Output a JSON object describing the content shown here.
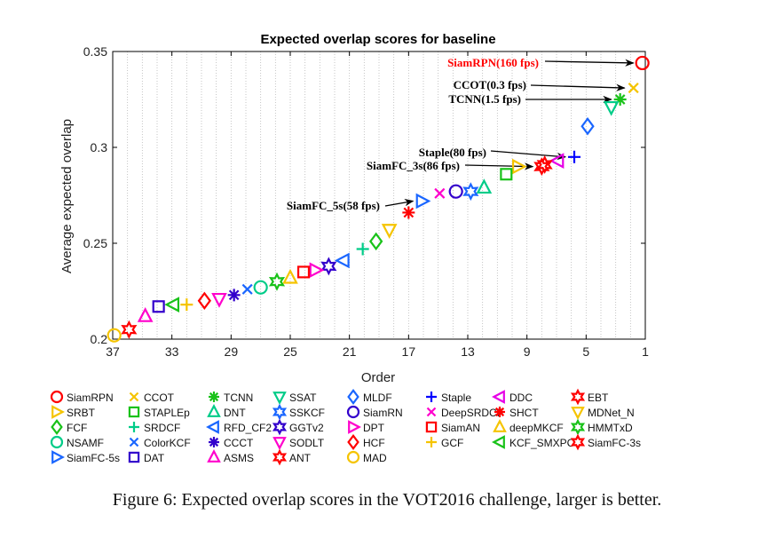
{
  "caption": "Figure 6: Expected overlap scores in the VOT2016 challenge, larger is better.",
  "chart_data": {
    "type": "scatter",
    "title": "Expected overlap scores for baseline",
    "xlabel": "Order",
    "ylabel": "Average expected overlap",
    "xlim": [
      37,
      1
    ],
    "ylim": [
      0.2,
      0.35
    ],
    "xticks": [
      37,
      33,
      29,
      25,
      21,
      17,
      13,
      9,
      5,
      1
    ],
    "xtick_labels": [
      "37",
      "33",
      "29",
      "25",
      "21",
      "17",
      "13",
      "9",
      "5",
      "1"
    ],
    "yticks": [
      0.2,
      0.25,
      0.3,
      0.35
    ],
    "ytick_labels": [
      "0.2",
      "0.25",
      "0.3",
      "0.35"
    ],
    "grid": "vertical dotted lines at each order",
    "series": [
      {
        "name": "SiamRPN",
        "marker": "circle",
        "color": "#ff0000",
        "x": 1.2,
        "y": 0.344
      },
      {
        "name": "CCOT",
        "marker": "x",
        "color": "#f5c400",
        "x": 1.8,
        "y": 0.331
      },
      {
        "name": "TCNN",
        "marker": "asterisk",
        "color": "#19c219",
        "x": 2.7,
        "y": 0.325
      },
      {
        "name": "SSAT",
        "marker": "triangle-down",
        "color": "#00cc88",
        "x": 3.3,
        "y": 0.321
      },
      {
        "name": "MLDF",
        "marker": "diamond",
        "color": "#1a66ff",
        "x": 4.9,
        "y": 0.311
      },
      {
        "name": "Staple",
        "marker": "plus",
        "color": "#0000ff",
        "x": 5.8,
        "y": 0.295
      },
      {
        "name": "DDC",
        "marker": "triangle-left",
        "color": "#e600e6",
        "x": 6.9,
        "y": 0.293
      },
      {
        "name": "EBT",
        "marker": "hexagram",
        "color": "#ff0000",
        "x": 7.8,
        "y": 0.291
      },
      {
        "name": "SRBT",
        "marker": "triangle-right",
        "color": "#f5c400",
        "x": 9.6,
        "y": 0.29
      },
      {
        "name": "STAPLEp",
        "marker": "square",
        "color": "#19c219",
        "x": 10.4,
        "y": 0.286
      },
      {
        "name": "DNT",
        "marker": "triangle-up",
        "color": "#00cc88",
        "x": 11.9,
        "y": 0.279
      },
      {
        "name": "SSKCF",
        "marker": "hexagram",
        "color": "#1a66ff",
        "x": 12.8,
        "y": 0.277
      },
      {
        "name": "SiamRN",
        "marker": "circle",
        "color": "#3300cc",
        "x": 13.8,
        "y": 0.277
      },
      {
        "name": "DeepSRDCF",
        "marker": "x",
        "color": "#ff00cc",
        "x": 14.9,
        "y": 0.276
      },
      {
        "name": "SHCT",
        "marker": "asterisk",
        "color": "#ff0000",
        "x": 17.0,
        "y": 0.266
      },
      {
        "name": "MDNet_N",
        "marker": "triangle-down",
        "color": "#f5c400",
        "x": 18.3,
        "y": 0.257
      },
      {
        "name": "FCF",
        "marker": "diamond",
        "color": "#19c219",
        "x": 19.2,
        "y": 0.251
      },
      {
        "name": "SRDCF",
        "marker": "plus",
        "color": "#00cc88",
        "x": 20.1,
        "y": 0.247
      },
      {
        "name": "RFD_CF2",
        "marker": "triangle-left",
        "color": "#1a66ff",
        "x": 21.4,
        "y": 0.241
      },
      {
        "name": "GGTv2",
        "marker": "hexagram",
        "color": "#3300cc",
        "x": 22.4,
        "y": 0.238
      },
      {
        "name": "DPT",
        "marker": "triangle-right",
        "color": "#ff00cc",
        "x": 23.3,
        "y": 0.236
      },
      {
        "name": "SiamAN",
        "marker": "square",
        "color": "#ff0000",
        "x": 24.1,
        "y": 0.235
      },
      {
        "name": "deepMKCF",
        "marker": "triangle-up",
        "color": "#f5c400",
        "x": 25.0,
        "y": 0.232
      },
      {
        "name": "HMMTxD",
        "marker": "hexagram",
        "color": "#19c219",
        "x": 25.9,
        "y": 0.23
      },
      {
        "name": "NSAMF",
        "marker": "circle",
        "color": "#00cc88",
        "x": 27.0,
        "y": 0.227
      },
      {
        "name": "ColorKCF",
        "marker": "x",
        "color": "#1a66ff",
        "x": 27.9,
        "y": 0.226
      },
      {
        "name": "CCCT",
        "marker": "asterisk",
        "color": "#3300cc",
        "x": 28.8,
        "y": 0.223
      },
      {
        "name": "SODLT",
        "marker": "triangle-down",
        "color": "#ff00cc",
        "x": 29.8,
        "y": 0.221
      },
      {
        "name": "HCF",
        "marker": "diamond",
        "color": "#ff0000",
        "x": 30.8,
        "y": 0.22
      },
      {
        "name": "GCF",
        "marker": "plus",
        "color": "#f5c400",
        "x": 32.0,
        "y": 0.218
      },
      {
        "name": "KCF_SMXPC",
        "marker": "triangle-left",
        "color": "#19c219",
        "x": 32.9,
        "y": 0.218
      },
      {
        "name": "DAT",
        "marker": "square",
        "color": "#3300cc",
        "x": 33.9,
        "y": 0.217
      },
      {
        "name": "ASMS",
        "marker": "triangle-up",
        "color": "#ff00cc",
        "x": 34.8,
        "y": 0.212
      },
      {
        "name": "ANT",
        "marker": "hexagram",
        "color": "#ff0000",
        "x": 35.9,
        "y": 0.205
      },
      {
        "name": "MAD",
        "marker": "circle",
        "color": "#f5c400",
        "x": 36.9,
        "y": 0.202
      },
      {
        "name": "SiamFC-3s",
        "marker": "hexagram",
        "color": "#ff0000",
        "x": 8.0,
        "y": 0.29
      },
      {
        "name": "SiamFC-5s",
        "marker": "triangle-right",
        "color": "#1a66ff",
        "x": 16.1,
        "y": 0.272
      }
    ],
    "annotations": [
      {
        "text": "SiamRPN(160 fps)",
        "color": "#ff0000",
        "x": 1.2,
        "y": 0.344
      },
      {
        "text": "CCOT(0.3 fps)",
        "color": "#000000",
        "x": 1.8,
        "y": 0.331
      },
      {
        "text": "TCNN(1.5 fps)",
        "color": "#000000",
        "x": 2.7,
        "y": 0.325
      },
      {
        "text": "Staple(80 fps)",
        "color": "#000000",
        "x": 5.8,
        "y": 0.295
      },
      {
        "text": "SiamFC_3s(86 fps)",
        "color": "#000000",
        "x": 8.0,
        "y": 0.29
      },
      {
        "text": "SiamFC_5s(58 fps)",
        "color": "#000000",
        "x": 16.1,
        "y": 0.272
      }
    ],
    "legend": {
      "placement": "bottom",
      "items": [
        [
          "SiamRPN",
          "circle",
          "#ff0000"
        ],
        [
          "CCOT",
          "x",
          "#f5c400"
        ],
        [
          "TCNN",
          "asterisk",
          "#19c219"
        ],
        [
          "SSAT",
          "triangle-down",
          "#00cc88"
        ],
        [
          "MLDF",
          "diamond",
          "#1a66ff"
        ],
        [
          "Staple",
          "plus",
          "#0000ff"
        ],
        [
          "DDC",
          "triangle-left",
          "#e600e6"
        ],
        [
          "EBT",
          "hexagram",
          "#ff0000"
        ],
        [
          "SRBT",
          "triangle-right",
          "#f5c400"
        ],
        [
          "STAPLEp",
          "square",
          "#19c219"
        ],
        [
          "DNT",
          "triangle-up",
          "#00cc88"
        ],
        [
          "SSKCF",
          "hexagram",
          "#1a66ff"
        ],
        [
          "SiamRN",
          "circle",
          "#3300cc"
        ],
        [
          "DeepSRDCF",
          "x",
          "#ff00cc"
        ],
        [
          "SHCT",
          "asterisk",
          "#ff0000"
        ],
        [
          "MDNet_N",
          "triangle-down",
          "#f5c400"
        ],
        [
          "FCF",
          "diamond",
          "#19c219"
        ],
        [
          "SRDCF",
          "plus",
          "#00cc88"
        ],
        [
          "RFD_CF2",
          "triangle-left",
          "#1a66ff"
        ],
        [
          "GGTv2",
          "hexagram",
          "#3300cc"
        ],
        [
          "DPT",
          "triangle-right",
          "#ff00cc"
        ],
        [
          "SiamAN",
          "square",
          "#ff0000"
        ],
        [
          "deepMKCF",
          "triangle-up",
          "#f5c400"
        ],
        [
          "HMMTxD",
          "hexagram",
          "#19c219"
        ],
        [
          "NSAMF",
          "circle",
          "#00cc88"
        ],
        [
          "ColorKCF",
          "x",
          "#1a66ff"
        ],
        [
          "CCCT",
          "asterisk",
          "#3300cc"
        ],
        [
          "SODLT",
          "triangle-down",
          "#ff00cc"
        ],
        [
          "HCF",
          "diamond",
          "#ff0000"
        ],
        [
          "GCF",
          "plus",
          "#f5c400"
        ],
        [
          "KCF_SMXPC",
          "triangle-left",
          "#19c219"
        ],
        [
          "SiamFC-3s",
          "hexagram",
          "#ff0000"
        ],
        [
          "SiamFC-5s",
          "triangle-right",
          "#1a66ff"
        ],
        [
          "DAT",
          "square",
          "#3300cc"
        ],
        [
          "ASMS",
          "triangle-up",
          "#ff00cc"
        ],
        [
          "ANT",
          "hexagram",
          "#ff0000"
        ],
        [
          "MAD",
          "circle",
          "#f5c400"
        ]
      ]
    }
  }
}
